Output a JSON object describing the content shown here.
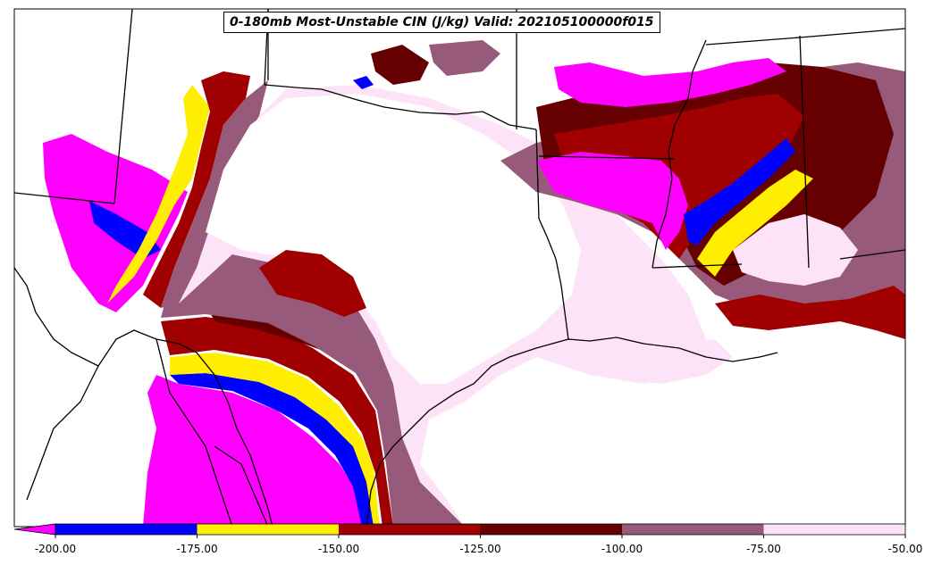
{
  "title": "0-180mb Most-Unstable CIN (J/kg) Valid: 202105100000f015",
  "colorbar": {
    "ticks": [
      "-200.00",
      "-175.00",
      "-150.00",
      "-125.00",
      "-100.00",
      "-75.00",
      "-50.00"
    ],
    "bins": [
      {
        "from": -200,
        "to": -175,
        "color": "#0000ff"
      },
      {
        "from": -175,
        "to": -150,
        "color": "#ffee00"
      },
      {
        "from": -150,
        "to": -125,
        "color": "#a00000"
      },
      {
        "from": -125,
        "to": -100,
        "color": "#660000"
      },
      {
        "from": -100,
        "to": -75,
        "color": "#985a7a"
      },
      {
        "from": -75,
        "to": -50,
        "color": "#fde3f7"
      }
    ],
    "under_color": "#ff00ff"
  },
  "colors": {
    "magenta": "#ff00ff",
    "blue": "#0000ff",
    "yellow": "#ffee00",
    "red": "#a00000",
    "darkred": "#660000",
    "mauve": "#985a7a",
    "pink": "#fde3f7"
  }
}
